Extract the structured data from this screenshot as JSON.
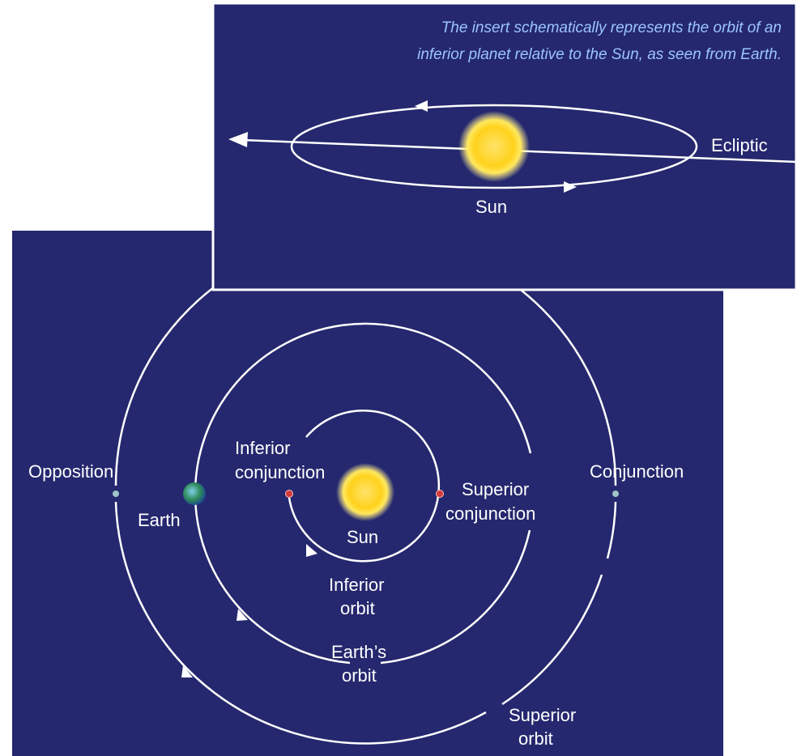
{
  "inset": {
    "caption": [
      "The insert schematically represents the orbit of an",
      "inferior planet relative to the Sun, as seen from Earth."
    ],
    "ecliptic": "Ecliptic",
    "sun": "Sun"
  },
  "main": {
    "opposition": "Opposition",
    "earth": "Earth",
    "inferior_conjunction": [
      "Inferior",
      "conjunction"
    ],
    "sun": "Sun",
    "superior_conjunction": [
      "Superior",
      "conjunction"
    ],
    "conjunction": "Conjunction",
    "inferior_orbit": [
      "Inferior",
      "orbit"
    ],
    "earths_orbit": [
      "Earth’s",
      "orbit"
    ],
    "superior_orbit": [
      "Superior",
      "orbit"
    ]
  }
}
